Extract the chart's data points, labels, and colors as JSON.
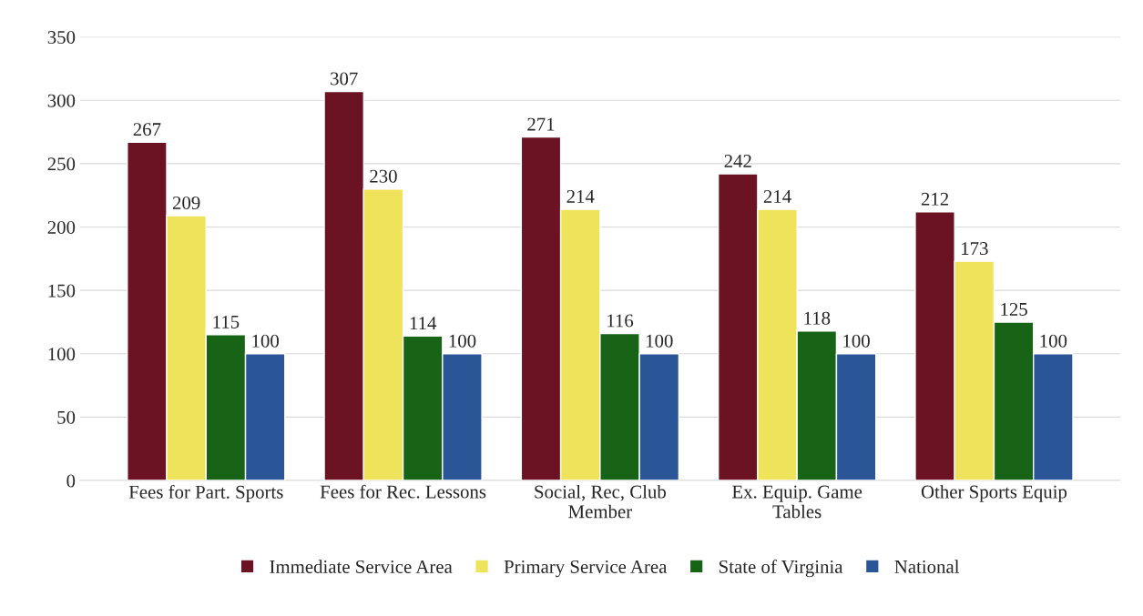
{
  "chart_data": {
    "type": "bar",
    "categories": [
      "Fees for Part. Sports",
      "Fees for Rec. Lessons",
      "Social, Rec, Club Member",
      "Ex. Equip. Game Tables",
      "Other Sports Equip"
    ],
    "series": [
      {
        "name": "Immediate Service Area",
        "color": "#6b1322",
        "values": [
          267,
          307,
          271,
          242,
          212
        ]
      },
      {
        "name": "Primary Service Area",
        "color": "#f0e35c",
        "values": [
          209,
          230,
          214,
          214,
          173
        ]
      },
      {
        "name": "State of Virginia",
        "color": "#176417",
        "values": [
          115,
          114,
          116,
          118,
          125
        ]
      },
      {
        "name": "National",
        "color": "#2a5597",
        "values": [
          100,
          100,
          100,
          100,
          100
        ]
      }
    ],
    "ylim": [
      0,
      350
    ],
    "yticks": [
      0,
      50,
      100,
      150,
      200,
      250,
      300,
      350
    ],
    "grid": "y",
    "legend": "bottom",
    "data_labels": true
  }
}
